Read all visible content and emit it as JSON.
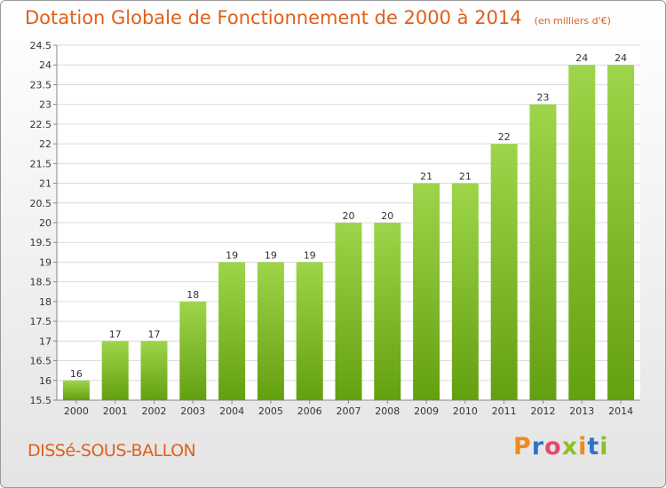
{
  "title": "Dotation Globale de Fonctionnement de 2000 à 2014",
  "unit": "(en milliers d'€)",
  "city": "DISSé-SOUS-BALLON",
  "brand": {
    "letters": [
      "P",
      "r",
      "o",
      "x",
      "i",
      "t",
      "i"
    ],
    "colors": [
      "#f08a1c",
      "#2f73c9",
      "#e34a6e",
      "#8cbf2c",
      "#f08a1c",
      "#2f73c9",
      "#8cbf2c"
    ]
  },
  "colors": {
    "bar_light": "#9ed54a",
    "bar_dark": "#63a010",
    "accent": "#e0601a"
  },
  "chart_data": {
    "type": "bar",
    "title": "Dotation Globale de Fonctionnement de 2000 à 2014",
    "ylabel": "(en milliers d'€)",
    "categories": [
      "2000",
      "2001",
      "2002",
      "2003",
      "2004",
      "2005",
      "2006",
      "2007",
      "2008",
      "2009",
      "2010",
      "2011",
      "2012",
      "2013",
      "2014"
    ],
    "values": [
      16,
      17,
      17,
      18,
      19,
      19,
      19,
      20,
      20,
      21,
      21,
      22,
      23,
      24,
      24
    ],
    "ylim": [
      15.5,
      24.5
    ],
    "yticks": [
      "15.5",
      "16",
      "16.5",
      "17",
      "17.5",
      "18",
      "18.5",
      "19",
      "19.5",
      "20",
      "20.5",
      "21",
      "21.5",
      "22",
      "22.5",
      "23",
      "23.5",
      "24",
      "24.5"
    ],
    "grid": true
  }
}
